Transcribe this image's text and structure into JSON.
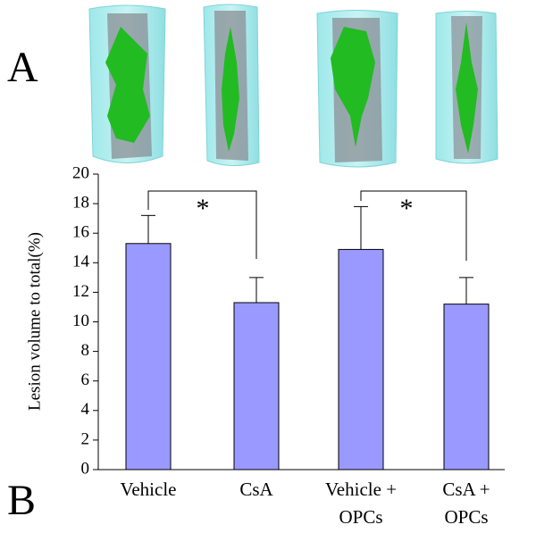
{
  "chart_data": {
    "type": "bar",
    "panel_labels": [
      "A",
      "B"
    ],
    "ylabel": "Lesion volume to total(%)",
    "categories": [
      [
        "Vehicle"
      ],
      [
        "CsA"
      ],
      [
        "Vehicle +",
        "OPCs"
      ],
      [
        "CsA +",
        "OPCs"
      ]
    ],
    "values": [
      15.3,
      11.3,
      14.9,
      11.2
    ],
    "errors": [
      1.9,
      1.7,
      2.9,
      1.8
    ],
    "color": "#9999ff",
    "ylim": [
      0,
      20
    ],
    "yticks": [
      0,
      2,
      4,
      6,
      8,
      10,
      12,
      14,
      16,
      18,
      20
    ],
    "significance": [
      "*",
      "*"
    ]
  }
}
